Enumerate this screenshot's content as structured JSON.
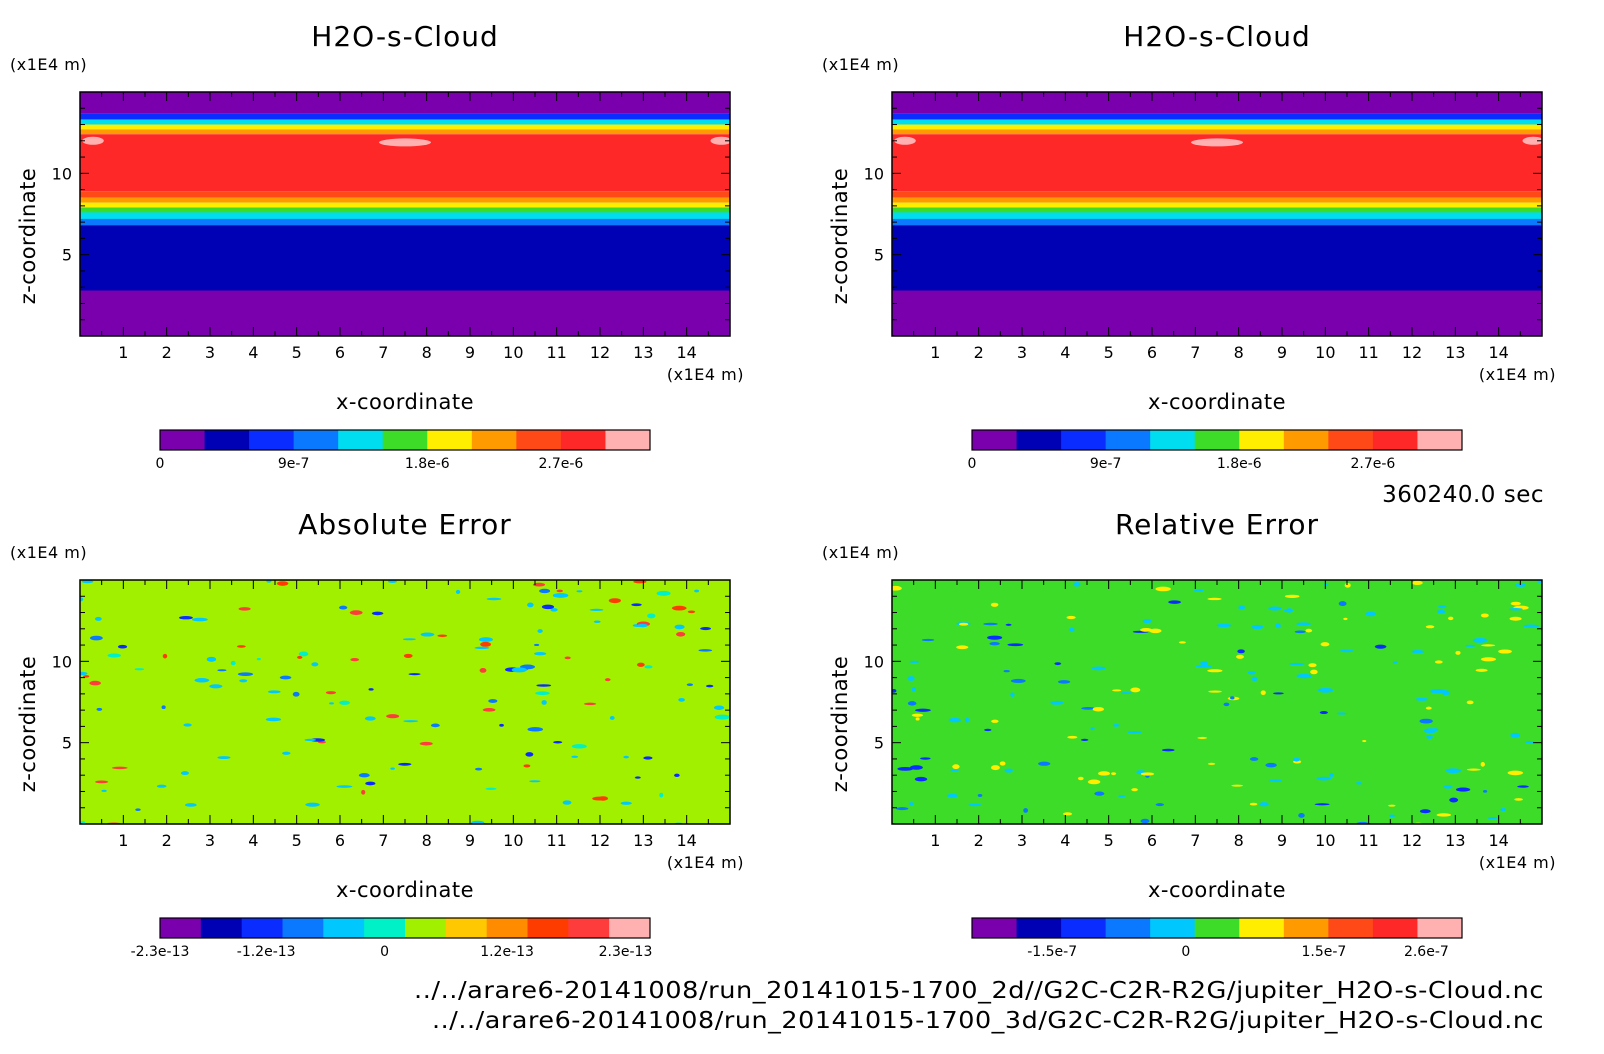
{
  "time_label": "360240.0 sec",
  "files": [
    "../../arare6-20141008/run_20141015-1700_2d//G2C-C2R-R2G/jupiter_H2O-s-Cloud.nc",
    "../../arare6-20141008/run_20141015-1700_3d/G2C-C2R-R2G/jupiter_H2O-s-Cloud.nc"
  ],
  "chart_data": [
    {
      "type": "heatmap",
      "title": "H2O-s-Cloud",
      "xlabel": "x-coordinate",
      "ylabel": "z-coordinate",
      "x_unit": "(x1E4 m)",
      "y_unit": "(x1E4 m)",
      "x_ticks": [
        "1",
        "2",
        "3",
        "4",
        "5",
        "6",
        "7",
        "8",
        "9",
        "10",
        "11",
        "12",
        "13",
        "14"
      ],
      "y_ticks": [
        "5",
        "10"
      ],
      "xlim": [
        0,
        15
      ],
      "ylim": [
        0,
        15
      ],
      "field": "cloud",
      "colorbar": {
        "colors": [
          "#7a00ae",
          "#0000b4",
          "#0a2cff",
          "#0a78ff",
          "#00dcf0",
          "#3cdc28",
          "#ffee00",
          "#ff9a00",
          "#ff4a18",
          "#ff2828",
          "#ffb0b0"
        ],
        "tick_labels": [
          "0",
          "9e-7",
          "1.8e-6",
          "2.7e-6"
        ],
        "tick_pos": [
          0,
          3,
          6,
          9
        ]
      }
    },
    {
      "type": "heatmap",
      "title": "H2O-s-Cloud",
      "xlabel": "x-coordinate",
      "ylabel": "z-coordinate",
      "x_unit": "(x1E4 m)",
      "y_unit": "(x1E4 m)",
      "x_ticks": [
        "1",
        "2",
        "3",
        "4",
        "5",
        "6",
        "7",
        "8",
        "9",
        "10",
        "11",
        "12",
        "13",
        "14"
      ],
      "y_ticks": [
        "5",
        "10"
      ],
      "xlim": [
        0,
        15
      ],
      "ylim": [
        0,
        15
      ],
      "field": "cloud",
      "colorbar": {
        "colors": [
          "#7a00ae",
          "#0000b4",
          "#0a2cff",
          "#0a78ff",
          "#00dcf0",
          "#3cdc28",
          "#ffee00",
          "#ff9a00",
          "#ff4a18",
          "#ff2828",
          "#ffb0b0"
        ],
        "tick_labels": [
          "0",
          "9e-7",
          "1.8e-6",
          "2.7e-6"
        ],
        "tick_pos": [
          0,
          3,
          6,
          9
        ]
      }
    },
    {
      "type": "heatmap",
      "title": "Absolute Error",
      "xlabel": "x-coordinate",
      "ylabel": "z-coordinate",
      "x_unit": "(x1E4 m)",
      "y_unit": "(x1E4 m)",
      "x_ticks": [
        "1",
        "2",
        "3",
        "4",
        "5",
        "6",
        "7",
        "8",
        "9",
        "10",
        "11",
        "12",
        "13",
        "14"
      ],
      "y_ticks": [
        "5",
        "10"
      ],
      "xlim": [
        0,
        15
      ],
      "ylim": [
        0,
        15
      ],
      "field": "abs",
      "background": "#a0f000",
      "colorbar": {
        "colors": [
          "#7a00ae",
          "#0000b4",
          "#0a2cff",
          "#0a78ff",
          "#00c8ff",
          "#00f0c8",
          "#a0f000",
          "#ffc800",
          "#ff8c00",
          "#ff3c00",
          "#ff3c3c",
          "#ffb0b0"
        ],
        "tick_labels": [
          "-2.3e-13",
          "-1.2e-13",
          "0",
          "1.2e-13",
          "2.3e-13"
        ],
        "tick_pos": [
          0,
          2.6,
          5.5,
          8.5,
          11.4
        ]
      }
    },
    {
      "type": "heatmap",
      "title": "Relative Error",
      "xlabel": "x-coordinate",
      "ylabel": "z-coordinate",
      "x_unit": "(x1E4 m)",
      "y_unit": "(x1E4 m)",
      "x_ticks": [
        "1",
        "2",
        "3",
        "4",
        "5",
        "6",
        "7",
        "8",
        "9",
        "10",
        "11",
        "12",
        "13",
        "14"
      ],
      "y_ticks": [
        "5",
        "10"
      ],
      "xlim": [
        0,
        15
      ],
      "ylim": [
        0,
        15
      ],
      "field": "rel",
      "background": "#3cdc28",
      "colorbar": {
        "colors": [
          "#7a00ae",
          "#0000b4",
          "#0a2cff",
          "#0a78ff",
          "#00c8ff",
          "#3cdc28",
          "#ffee00",
          "#ff9a00",
          "#ff4a18",
          "#ff2828",
          "#ffb0b0"
        ],
        "tick_labels": [
          "-1.5e-7",
          "0",
          "1.5e-7",
          "2.6e-7"
        ],
        "tick_pos": [
          1.8,
          4.8,
          7.9,
          10.2
        ]
      }
    }
  ]
}
